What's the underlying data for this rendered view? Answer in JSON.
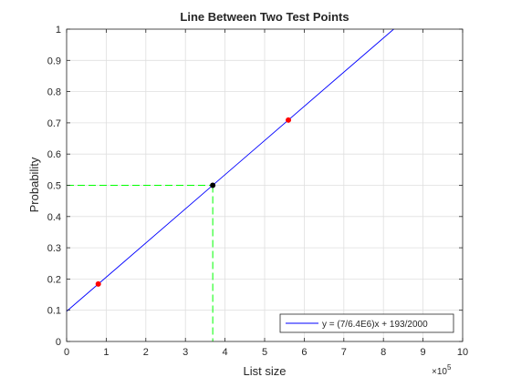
{
  "chart_data": {
    "type": "line",
    "title": "Line Between Two Test Points",
    "xlabel": "List size",
    "ylabel": "Probability",
    "x_exponent_label": "×10",
    "x_exponent": "5",
    "xlim": [
      0,
      1000000
    ],
    "ylim": [
      0,
      1
    ],
    "grid": true,
    "x_ticks": [
      0,
      100000,
      200000,
      300000,
      400000,
      500000,
      600000,
      700000,
      800000,
      900000,
      1000000
    ],
    "x_tick_labels": [
      "0",
      "1",
      "2",
      "3",
      "4",
      "5",
      "6",
      "7",
      "8",
      "9",
      "10"
    ],
    "y_ticks": [
      0,
      0.1,
      0.2,
      0.3,
      0.4,
      0.5,
      0.6,
      0.7,
      0.8,
      0.9,
      1
    ],
    "y_tick_labels": [
      "0",
      "0.1",
      "0.2",
      "0.3",
      "0.4",
      "0.5",
      "0.6",
      "0.7",
      "0.8",
      "0.9",
      "1"
    ],
    "legend_position": "bottom-right",
    "series": [
      {
        "name": "y = (7/6.4E6)x + 193/2000",
        "kind": "line",
        "color": "#0000ff",
        "x": [
          0,
          826000
        ],
        "y": [
          0.0965,
          1.0
        ]
      }
    ],
    "test_points": {
      "color": "#ff0000",
      "x": [
        80000,
        560000
      ],
      "y": [
        0.184,
        0.709
      ]
    },
    "intersection_point": {
      "color": "#000000",
      "x": 369000,
      "y": 0.5
    },
    "guide_lines": {
      "color": "#00ff00",
      "style": "dashed",
      "x": 369000,
      "y": 0.5
    }
  }
}
